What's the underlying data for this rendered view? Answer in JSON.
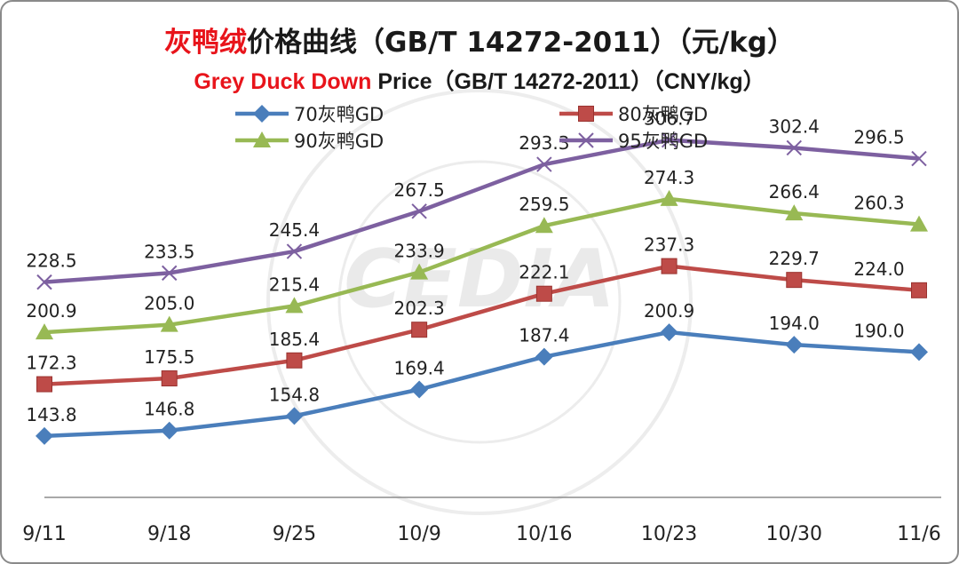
{
  "title": {
    "cn_highlight": "灰鸭绒",
    "cn_rest": "价格曲线（GB/T 14272-2011）（元/kg）",
    "en_highlight": "Grey Duck Down",
    "en_rest": " Price（GB/T 14272-2011）（CNY/kg）"
  },
  "watermark": {
    "logo_text": "CEDIA",
    "ring_text_en": "FEATHER AND DOWN INDUSTRIAL ASSOCIATION",
    "ring_text_cn": "中国羽绒工业协会"
  },
  "chart_data": {
    "type": "line",
    "categories": [
      "9/11",
      "9/18",
      "9/25",
      "10/9",
      "10/16",
      "10/23",
      "10/30",
      "11/6"
    ],
    "ylim": [
      110,
      330
    ],
    "grid": false,
    "legend_position": "top",
    "series": [
      {
        "name": "70灰鸭GD",
        "color": "#4a7ebb",
        "marker": "diamond",
        "values": [
          143.8,
          146.8,
          154.8,
          169.4,
          187.4,
          200.9,
          194.0,
          190.0
        ],
        "labels": [
          "143.8",
          "146.8",
          "154.8",
          "169.4",
          "187.4",
          "200.9",
          "194.0",
          "190.0"
        ]
      },
      {
        "name": "80灰鸭GD",
        "color": "#be4b48",
        "marker": "square",
        "values": [
          172.3,
          175.5,
          185.4,
          202.3,
          222.1,
          237.3,
          229.7,
          224.0
        ],
        "labels": [
          "172.3",
          "175.5",
          "185.4",
          "202.3",
          "222.1",
          "237.3",
          "229.7",
          "224.0"
        ]
      },
      {
        "name": "90灰鸭GD",
        "color": "#98b954",
        "marker": "triangle",
        "values": [
          200.9,
          205.0,
          215.4,
          233.9,
          259.5,
          274.3,
          266.4,
          260.3
        ],
        "labels": [
          "200.9",
          "205.0",
          "215.4",
          "233.9",
          "259.5",
          "274.3",
          "266.4",
          "260.3"
        ]
      },
      {
        "name": "95灰鸭GD",
        "color": "#7d60a0",
        "marker": "x",
        "values": [
          228.5,
          233.5,
          245.4,
          267.5,
          293.3,
          306.7,
          302.4,
          296.5
        ],
        "labels": [
          "228.5",
          "233.5",
          "245.4",
          "267.5",
          "293.3",
          "306.7",
          "302.4",
          "296.5"
        ]
      }
    ]
  }
}
